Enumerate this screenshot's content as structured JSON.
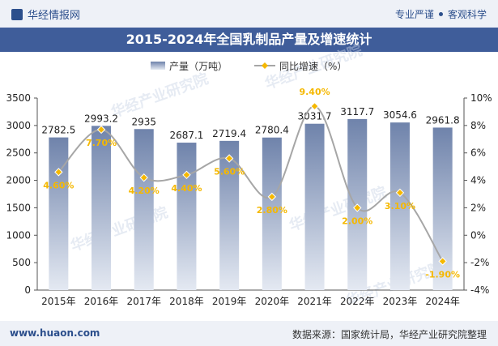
{
  "header": {
    "brand": "华经情报网",
    "tagline_left": "专业严谨",
    "tagline_right": "客观科学"
  },
  "watermarks": [
    "华经产业研究院",
    "华经产业研究院",
    "华经产业研究院",
    "华经产业研究院",
    "华经产业研究院"
  ],
  "footer": {
    "site": "www.huaon.com",
    "source": "数据来源：国家统计局，华经产业研究院整理"
  },
  "colors": {
    "bar_top": "#e4e9f2",
    "bar_bottom": "#6f83ab",
    "line": "#a6a6a6",
    "marker": "#f5b800",
    "pct_label": "#f5b800",
    "title_bg": "#3f5d9a"
  },
  "chart_data": {
    "type": "bar+line",
    "title": "2015-2024年全国乳制品产量及增速统计",
    "categories": [
      "2015年",
      "2016年",
      "2017年",
      "2018年",
      "2019年",
      "2020年",
      "2021年",
      "2022年",
      "2023年",
      "2024年"
    ],
    "series": [
      {
        "name": "产量（万吨）",
        "type": "bar",
        "axis": "left",
        "values": [
          2782.5,
          2993.2,
          2935,
          2687.1,
          2719.4,
          2780.4,
          3031.7,
          3117.7,
          3054.6,
          2961.8
        ],
        "labels": [
          "2782.5",
          "2993.2",
          "2935",
          "2687.1",
          "2719.4",
          "2780.4",
          "3031.7",
          "3117.7",
          "3054.6",
          "2961.8"
        ]
      },
      {
        "name": "同比增速（%）",
        "type": "line",
        "axis": "right",
        "values": [
          4.6,
          7.7,
          4.2,
          4.4,
          5.6,
          2.8,
          9.4,
          2.0,
          3.1,
          -1.9
        ],
        "labels": [
          "4.60%",
          "7.70%",
          "4.20%",
          "4.40%",
          "5.60%",
          "2.80%",
          "9.40%",
          "2.00%",
          "3.10%",
          "-1.90%"
        ]
      }
    ],
    "left_axis": {
      "min": 0,
      "max": 3500,
      "ticks": [
        "0",
        "500",
        "1000",
        "1500",
        "2000",
        "2500",
        "3000",
        "3500"
      ]
    },
    "right_axis": {
      "min": -4,
      "max": 10,
      "ticks": [
        "-4%",
        "-2%",
        "0%",
        "2%",
        "4%",
        "6%",
        "8%",
        "10%"
      ]
    },
    "legend_position": "top-center",
    "grid": false
  }
}
